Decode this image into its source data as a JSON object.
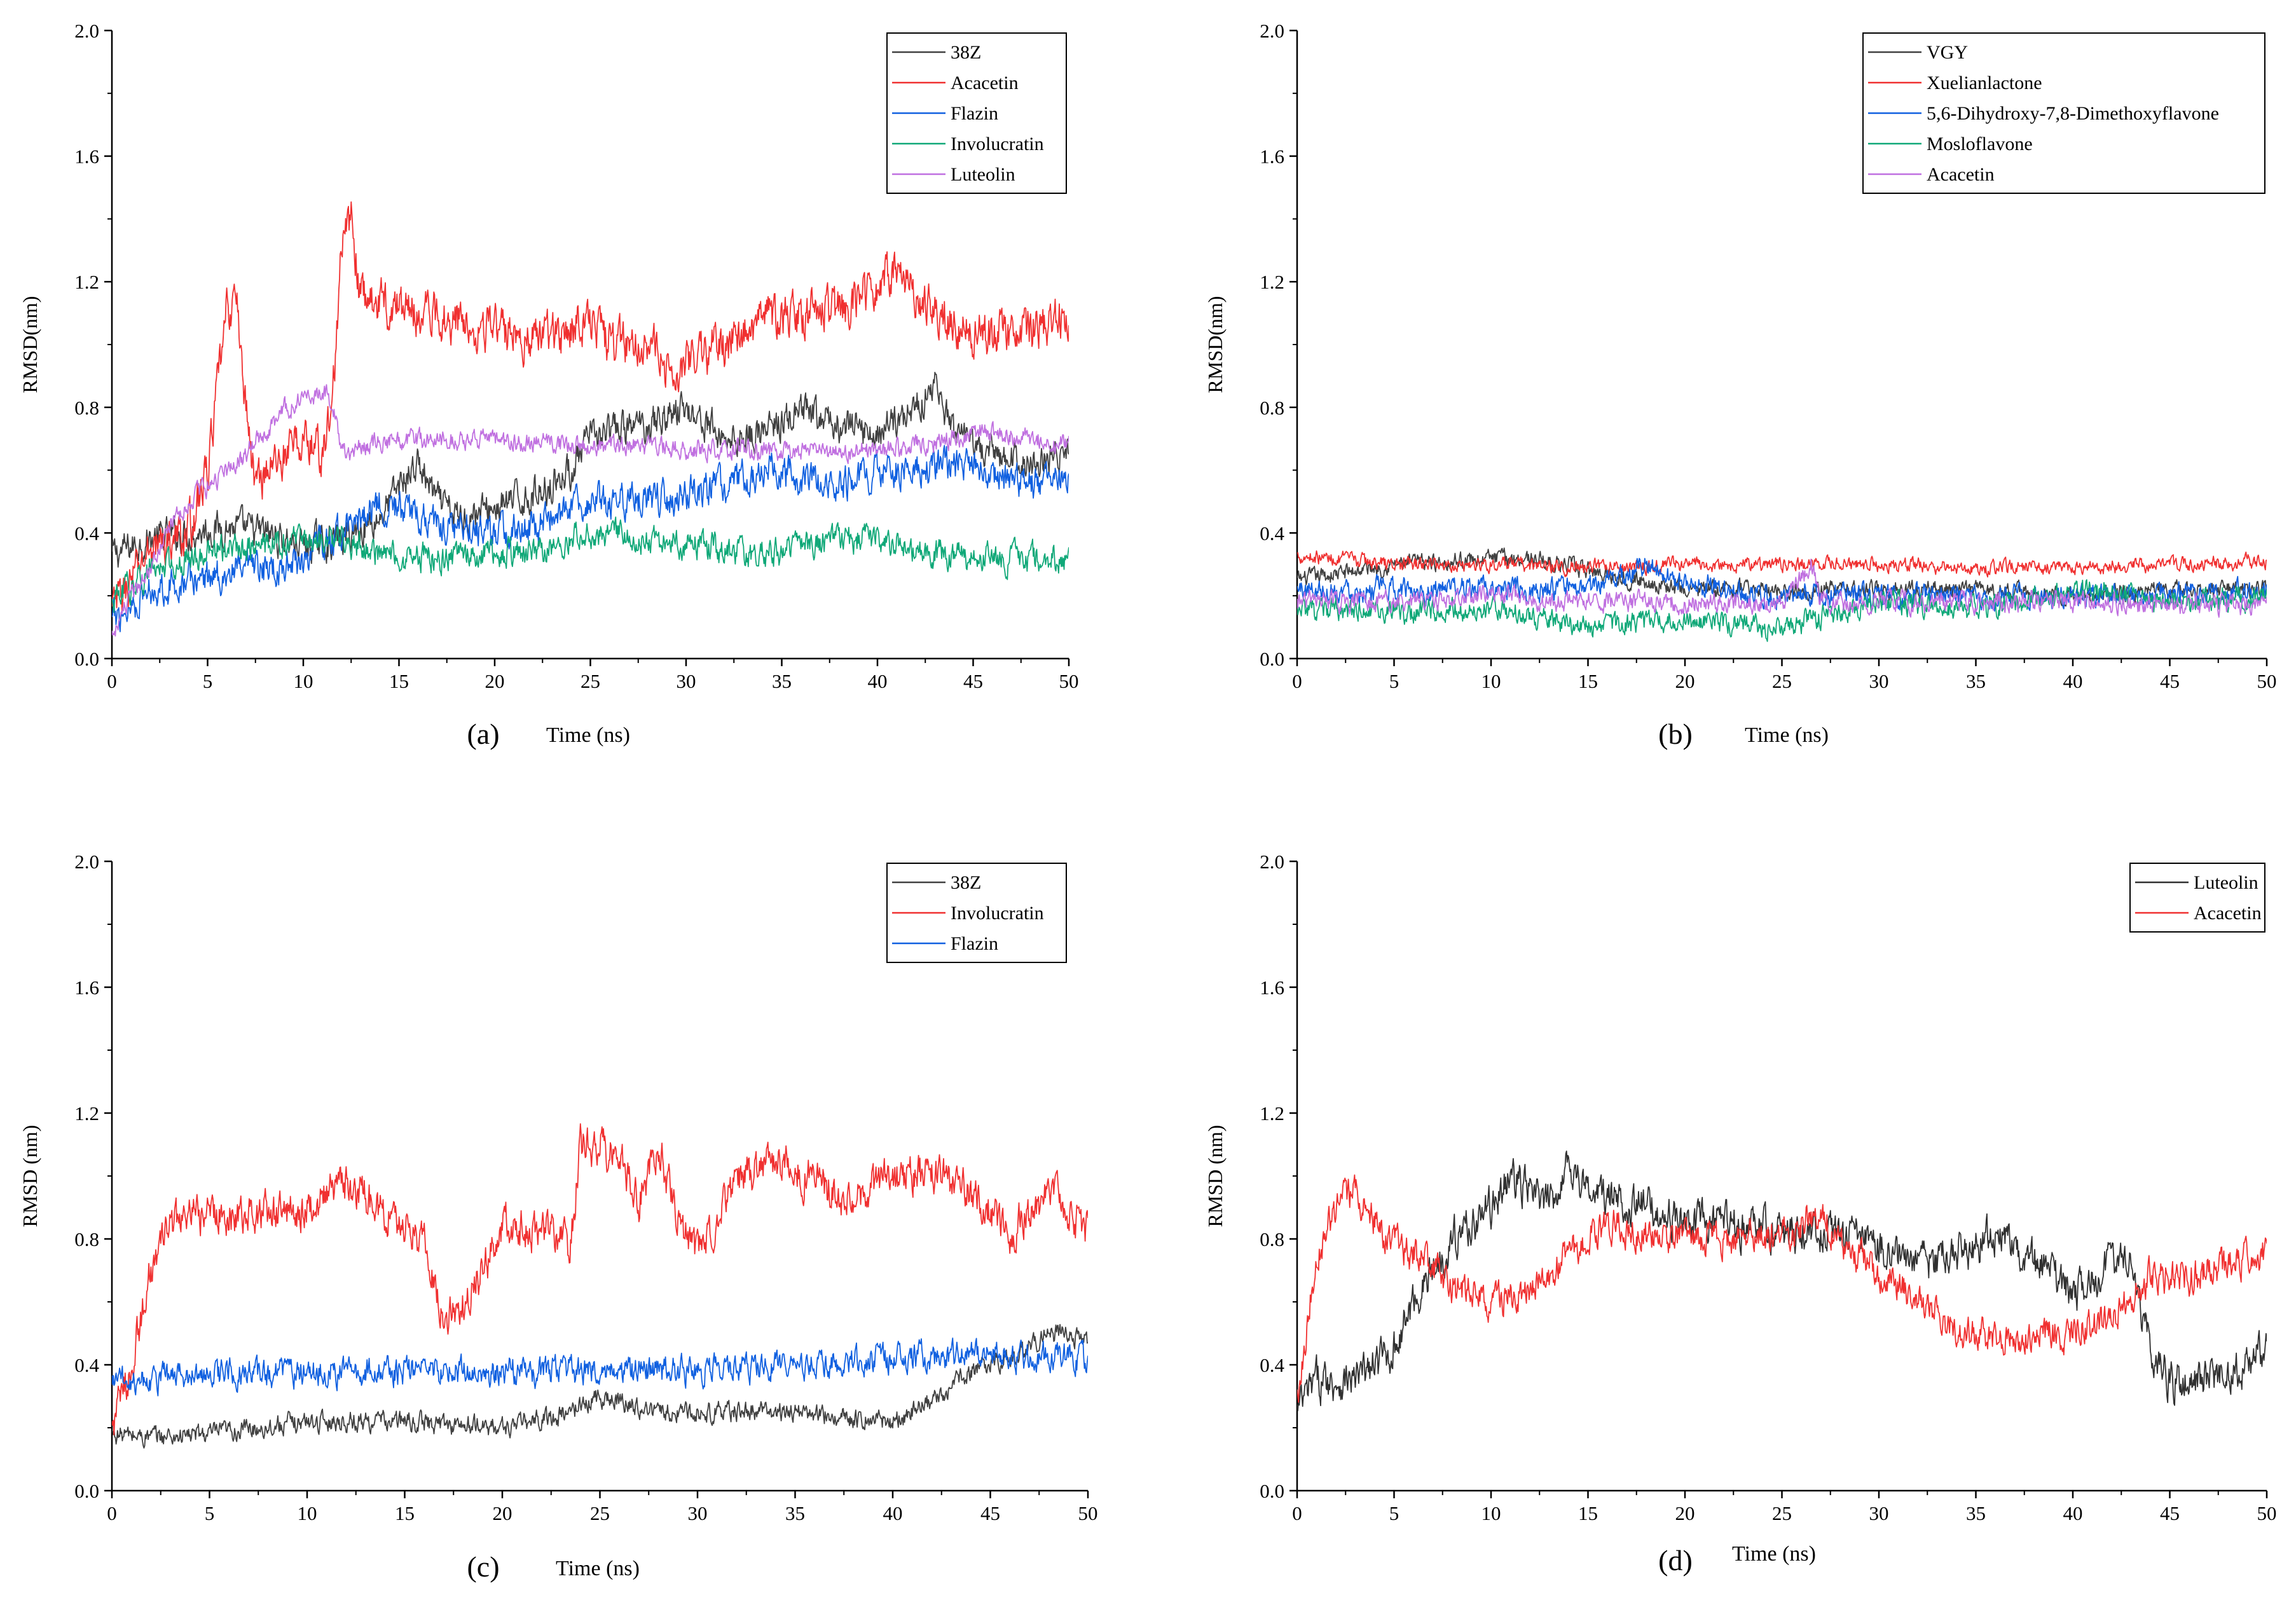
{
  "chart_data": [
    {
      "type": "line",
      "panel_label": "(a)",
      "xlabel": "Time (ns)",
      "ylabel": "RMSD(nm)",
      "xlim": [
        0,
        50
      ],
      "ylim": [
        0,
        2.0
      ],
      "xticks": [
        "0",
        "5",
        "10",
        "15",
        "20",
        "25",
        "30",
        "35",
        "40",
        "45",
        "50"
      ],
      "yticks": [
        "0.0",
        "0.4",
        "0.8",
        "1.2",
        "1.6",
        "2.0"
      ],
      "legend_position": "top-right",
      "series": [
        {
          "name": "38Z",
          "color": "#404040",
          "noise": 0.06,
          "x": [
            0,
            2,
            4,
            6,
            8,
            10,
            12,
            14,
            15,
            16,
            17,
            18,
            20,
            22,
            24,
            25,
            26,
            28,
            30,
            32,
            34,
            36,
            38,
            40,
            42,
            43,
            44,
            46,
            48,
            50
          ],
          "y": [
            0.33,
            0.38,
            0.4,
            0.42,
            0.4,
            0.36,
            0.38,
            0.45,
            0.55,
            0.62,
            0.5,
            0.45,
            0.48,
            0.52,
            0.6,
            0.7,
            0.72,
            0.75,
            0.8,
            0.7,
            0.72,
            0.78,
            0.74,
            0.72,
            0.8,
            0.88,
            0.7,
            0.65,
            0.62,
            0.65
          ]
        },
        {
          "name": "Acacetin",
          "color": "#f03030",
          "noise": 0.08,
          "x": [
            0,
            2,
            4,
            5,
            6,
            6.5,
            7,
            7.5,
            8,
            9,
            10,
            11,
            11.5,
            12,
            12.5,
            13,
            15,
            18,
            20,
            22,
            24,
            25,
            26,
            28,
            29,
            30,
            32,
            34,
            36,
            38,
            40,
            41,
            42,
            44,
            46,
            48,
            50
          ],
          "y": [
            0.15,
            0.35,
            0.4,
            0.6,
            1.1,
            1.15,
            0.8,
            0.55,
            0.6,
            0.65,
            0.7,
            0.65,
            0.8,
            1.3,
            1.4,
            1.15,
            1.12,
            1.08,
            1.05,
            1.02,
            1.05,
            1.1,
            1.0,
            1.02,
            0.9,
            0.95,
            1.0,
            1.08,
            1.1,
            1.1,
            1.2,
            1.25,
            1.15,
            1.05,
            1.03,
            1.05,
            1.1
          ]
        },
        {
          "name": "Flazin",
          "color": "#1060e0",
          "noise": 0.06,
          "x": [
            0,
            2,
            4,
            6,
            8,
            10,
            12,
            14,
            16,
            18,
            20,
            22,
            24,
            26,
            28,
            30,
            32,
            34,
            36,
            38,
            40,
            42,
            44,
            46,
            48,
            50
          ],
          "y": [
            0.12,
            0.22,
            0.25,
            0.27,
            0.28,
            0.32,
            0.4,
            0.5,
            0.45,
            0.42,
            0.4,
            0.42,
            0.48,
            0.5,
            0.5,
            0.52,
            0.55,
            0.6,
            0.58,
            0.55,
            0.6,
            0.6,
            0.62,
            0.58,
            0.56,
            0.56
          ]
        },
        {
          "name": "Involucratin",
          "color": "#10a878",
          "noise": 0.05,
          "x": [
            0,
            2,
            4,
            6,
            8,
            10,
            12,
            14,
            16,
            18,
            20,
            22,
            24,
            26,
            28,
            30,
            32,
            34,
            36,
            38,
            40,
            42,
            44,
            46,
            48,
            50
          ],
          "y": [
            0.18,
            0.28,
            0.32,
            0.35,
            0.36,
            0.37,
            0.38,
            0.33,
            0.32,
            0.32,
            0.33,
            0.34,
            0.38,
            0.4,
            0.38,
            0.37,
            0.34,
            0.33,
            0.35,
            0.38,
            0.38,
            0.35,
            0.32,
            0.32,
            0.32,
            0.32
          ]
        },
        {
          "name": "Luteolin",
          "color": "#c070e0",
          "noise": 0.035,
          "x": [
            0,
            2,
            3,
            4,
            5,
            6,
            7,
            8,
            9,
            10,
            11,
            11.5,
            12,
            13,
            15,
            20,
            25,
            30,
            35,
            40,
            44,
            45,
            46,
            48,
            50
          ],
          "y": [
            0.08,
            0.3,
            0.42,
            0.5,
            0.55,
            0.6,
            0.65,
            0.72,
            0.8,
            0.82,
            0.85,
            0.82,
            0.65,
            0.68,
            0.7,
            0.69,
            0.68,
            0.67,
            0.66,
            0.66,
            0.7,
            0.72,
            0.72,
            0.7,
            0.68
          ]
        }
      ]
    },
    {
      "type": "line",
      "panel_label": "(b)",
      "xlabel": "Time (ns)",
      "ylabel": "RMSD(nm)",
      "xlim": [
        0,
        50
      ],
      "ylim": [
        0,
        2.0
      ],
      "xticks": [
        "0",
        "5",
        "10",
        "15",
        "20",
        "25",
        "30",
        "35",
        "40",
        "45",
        "50"
      ],
      "yticks": [
        "0.0",
        "0.4",
        "0.8",
        "1.2",
        "1.6",
        "2.0"
      ],
      "legend_position": "top-right",
      "series": [
        {
          "name": "VGY",
          "color": "#404040",
          "noise": 0.03,
          "x": [
            0,
            5,
            10,
            12,
            15,
            20,
            25,
            30,
            35,
            40,
            45,
            50
          ],
          "y": [
            0.25,
            0.3,
            0.32,
            0.32,
            0.28,
            0.22,
            0.22,
            0.22,
            0.22,
            0.2,
            0.22,
            0.22
          ]
        },
        {
          "name": "Xuelianlactone",
          "color": "#f03030",
          "noise": 0.025,
          "x": [
            0,
            5,
            10,
            15,
            20,
            25,
            30,
            35,
            40,
            45,
            50
          ],
          "y": [
            0.33,
            0.3,
            0.3,
            0.29,
            0.3,
            0.3,
            0.3,
            0.29,
            0.29,
            0.3,
            0.31
          ]
        },
        {
          "name": "5,6-Dihydroxy-7,8-Dimethoxyflavone",
          "color": "#1060e0",
          "noise": 0.04,
          "x": [
            0,
            5,
            10,
            15,
            18,
            20,
            25,
            30,
            35,
            40,
            45,
            50
          ],
          "y": [
            0.22,
            0.22,
            0.22,
            0.22,
            0.3,
            0.24,
            0.2,
            0.2,
            0.19,
            0.2,
            0.2,
            0.22
          ]
        },
        {
          "name": "Mosloflavone",
          "color": "#10a878",
          "noise": 0.04,
          "x": [
            0,
            5,
            10,
            15,
            20,
            25,
            30,
            35,
            40,
            45,
            50
          ],
          "y": [
            0.15,
            0.15,
            0.16,
            0.1,
            0.12,
            0.1,
            0.18,
            0.15,
            0.22,
            0.18,
            0.2
          ]
        },
        {
          "name": "Acacetin",
          "color": "#c070e0",
          "noise": 0.035,
          "x": [
            0,
            5,
            10,
            15,
            20,
            25,
            26.5,
            27,
            30,
            35,
            40,
            45,
            50
          ],
          "y": [
            0.18,
            0.18,
            0.2,
            0.18,
            0.18,
            0.17,
            0.3,
            0.18,
            0.18,
            0.18,
            0.18,
            0.17,
            0.17
          ]
        }
      ]
    },
    {
      "type": "line",
      "panel_label": "(c)",
      "xlabel": "Time (ns)",
      "ylabel": "RMSD (nm)",
      "xlim": [
        0,
        50
      ],
      "ylim": [
        0,
        2.0
      ],
      "xticks": [
        "0",
        "5",
        "10",
        "15",
        "20",
        "25",
        "30",
        "35",
        "40",
        "45",
        "50"
      ],
      "yticks": [
        "0.0",
        "0.4",
        "0.8",
        "1.2",
        "1.6",
        "2.0"
      ],
      "legend_position": "top-right",
      "series": [
        {
          "name": "38Z",
          "color": "#404040",
          "noise": 0.035,
          "x": [
            0,
            2,
            5,
            10,
            15,
            20,
            23,
            25,
            28,
            30,
            35,
            40,
            42,
            44,
            46,
            48,
            50
          ],
          "y": [
            0.18,
            0.17,
            0.18,
            0.22,
            0.22,
            0.2,
            0.24,
            0.3,
            0.25,
            0.25,
            0.25,
            0.22,
            0.28,
            0.38,
            0.42,
            0.5,
            0.48
          ]
        },
        {
          "name": "Involucratin",
          "color": "#f03030",
          "noise": 0.07,
          "x": [
            0,
            1,
            2,
            3,
            5,
            8,
            10,
            12,
            14,
            16,
            17,
            18,
            19,
            20,
            22,
            23.5,
            24,
            25,
            26,
            27,
            28,
            29,
            30,
            32,
            34,
            36,
            38,
            40,
            42,
            44,
            46,
            48,
            50
          ],
          "y": [
            0.2,
            0.4,
            0.7,
            0.85,
            0.88,
            0.88,
            0.9,
            0.98,
            0.88,
            0.8,
            0.55,
            0.6,
            0.7,
            0.85,
            0.82,
            0.78,
            1.1,
            1.1,
            1.05,
            0.92,
            1.1,
            0.85,
            0.75,
            0.98,
            1.05,
            0.98,
            0.92,
            1.0,
            1.0,
            0.95,
            0.82,
            0.95,
            0.82
          ]
        },
        {
          "name": "Flazin",
          "color": "#1060e0",
          "noise": 0.05,
          "x": [
            0,
            5,
            10,
            15,
            20,
            25,
            30,
            35,
            40,
            45,
            50
          ],
          "y": [
            0.35,
            0.37,
            0.38,
            0.38,
            0.38,
            0.38,
            0.38,
            0.4,
            0.42,
            0.43,
            0.42
          ]
        }
      ]
    },
    {
      "type": "line",
      "panel_label": "(d)",
      "xlabel": "Time (ns)",
      "ylabel": "RMSD (nm)",
      "xlim": [
        0,
        50
      ],
      "ylim": [
        0,
        2.0
      ],
      "xticks": [
        "0",
        "5",
        "10",
        "15",
        "20",
        "25",
        "30",
        "35",
        "40",
        "45",
        "50"
      ],
      "yticks": [
        "0.0",
        "0.4",
        "0.8",
        "1.2",
        "1.6",
        "2.0"
      ],
      "legend_position": "top-right",
      "series": [
        {
          "name": "Luteolin",
          "color": "#303030",
          "noise": 0.07,
          "x": [
            0,
            1,
            3,
            5,
            6,
            7,
            8,
            10,
            11,
            12,
            13,
            14,
            15,
            18,
            20,
            22,
            25,
            28,
            30,
            32,
            35,
            36,
            38,
            40,
            42,
            43,
            44,
            45,
            47,
            49,
            50
          ],
          "y": [
            0.25,
            0.35,
            0.35,
            0.45,
            0.6,
            0.7,
            0.8,
            0.9,
            1.0,
            0.95,
            0.9,
            1.05,
            0.95,
            0.9,
            0.85,
            0.85,
            0.82,
            0.82,
            0.78,
            0.72,
            0.78,
            0.82,
            0.72,
            0.62,
            0.72,
            0.75,
            0.45,
            0.35,
            0.35,
            0.4,
            0.45
          ]
        },
        {
          "name": "Acacetin",
          "color": "#f03030",
          "noise": 0.06,
          "x": [
            0,
            1,
            2,
            3,
            4,
            5,
            6,
            8,
            10,
            12,
            14,
            16,
            18,
            20,
            22,
            25,
            27,
            28,
            30,
            32,
            34,
            36,
            38,
            40,
            42,
            44,
            46,
            48,
            50
          ],
          "y": [
            0.3,
            0.75,
            0.9,
            0.95,
            0.85,
            0.78,
            0.75,
            0.65,
            0.6,
            0.62,
            0.75,
            0.85,
            0.82,
            0.8,
            0.8,
            0.82,
            0.88,
            0.78,
            0.7,
            0.62,
            0.5,
            0.48,
            0.5,
            0.5,
            0.55,
            0.68,
            0.68,
            0.72,
            0.75
          ]
        }
      ]
    }
  ]
}
